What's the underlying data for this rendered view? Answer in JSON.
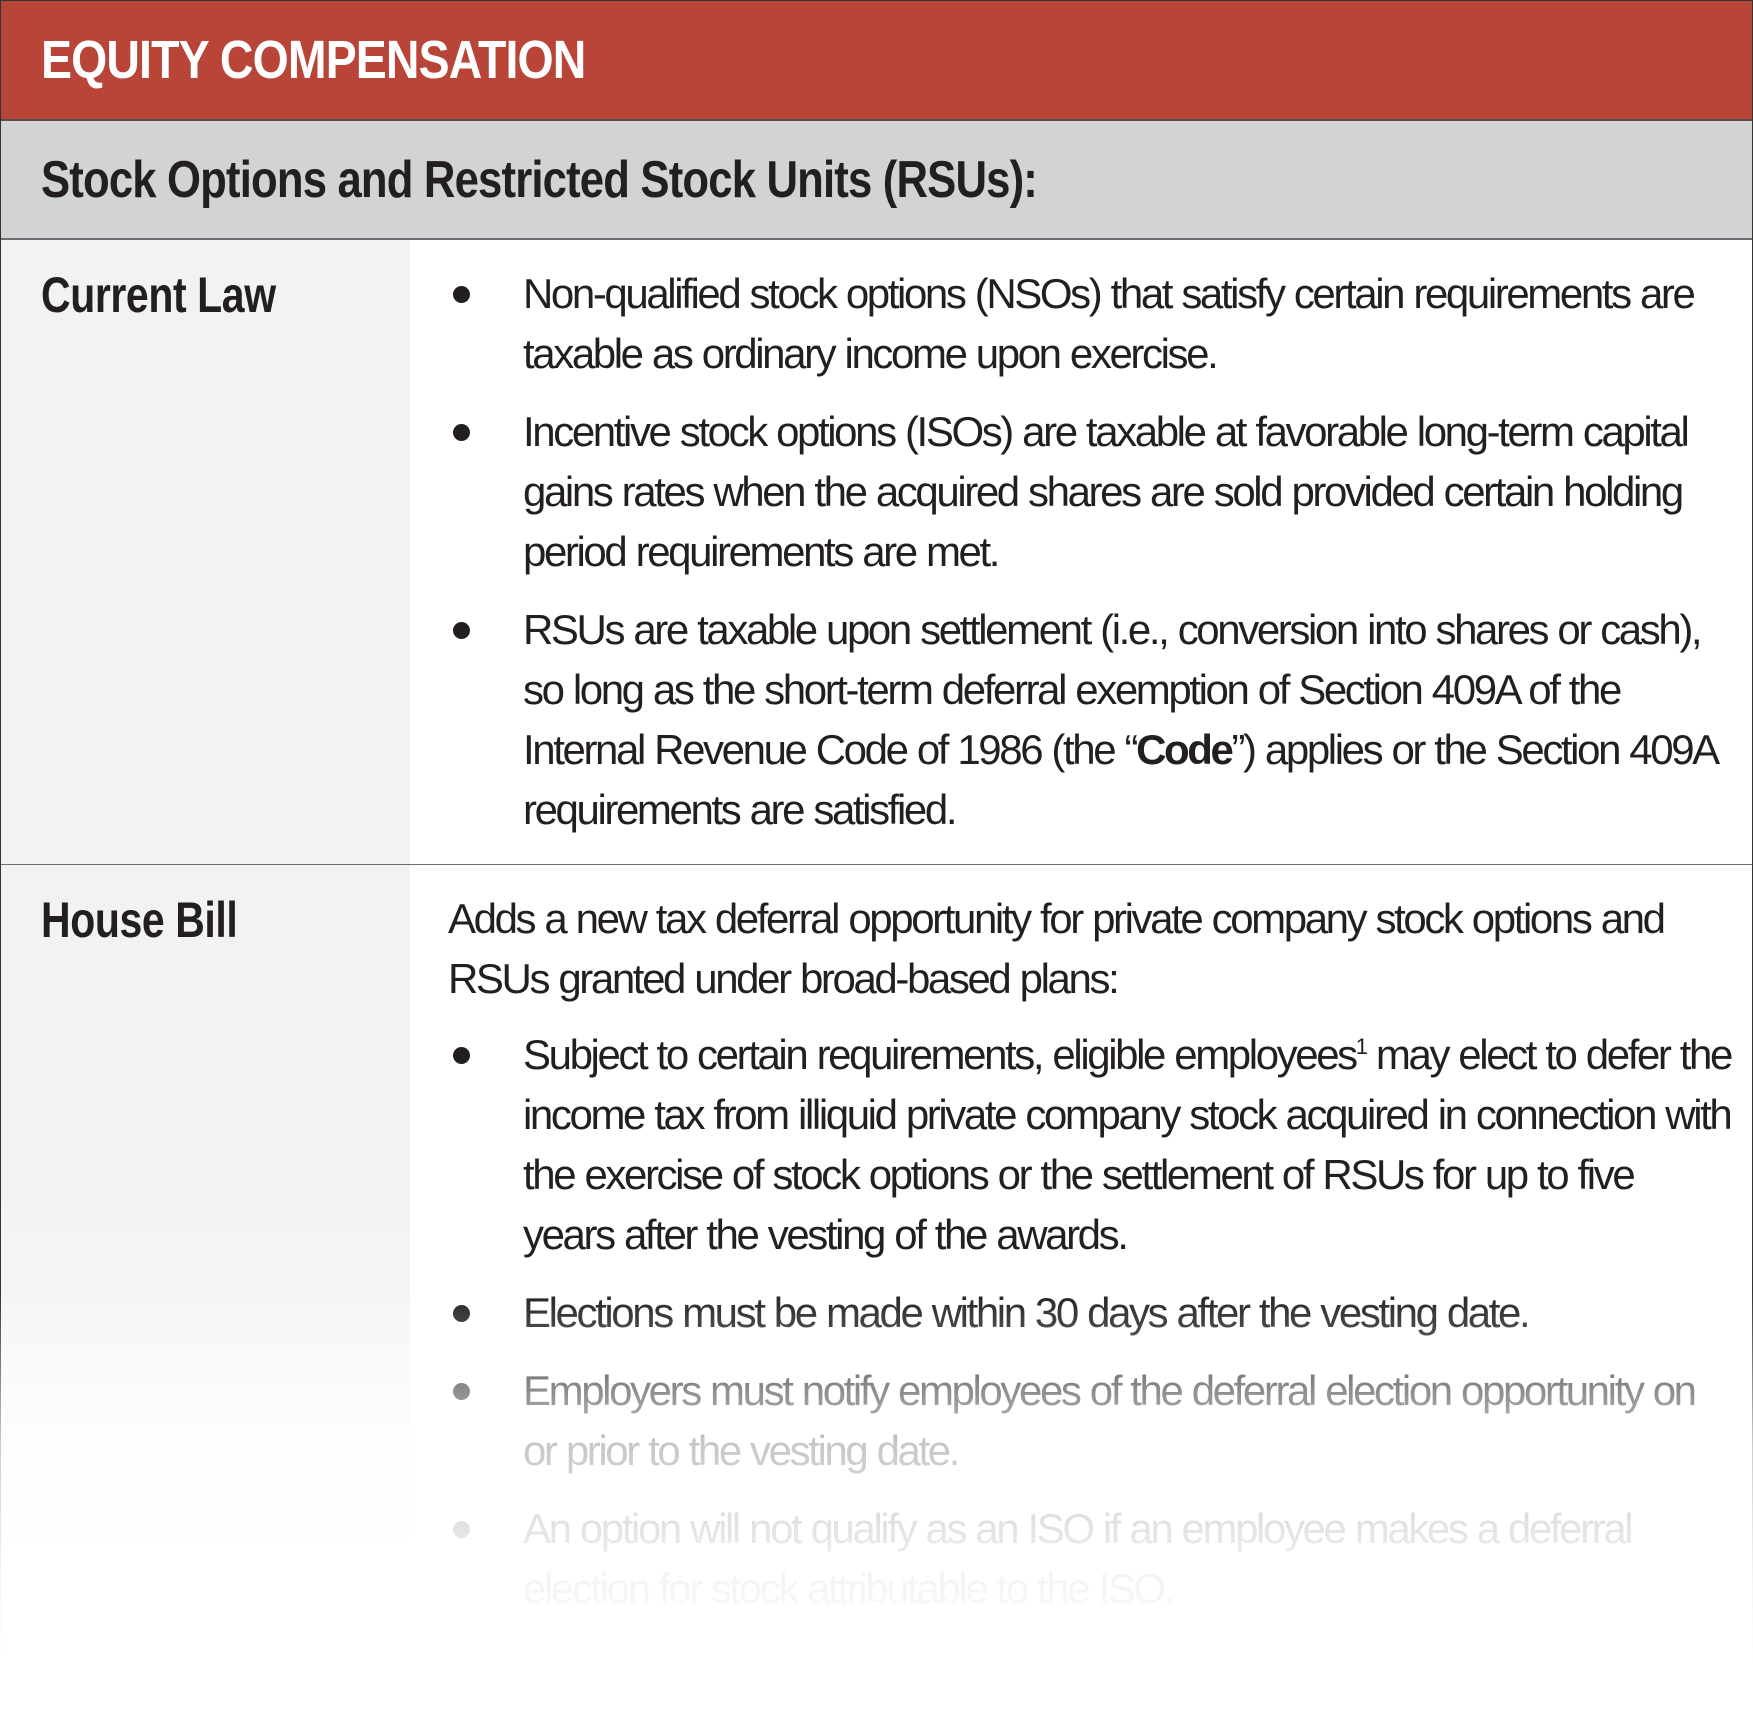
{
  "header": {
    "title": "EQUITY COMPENSATION",
    "accent": "#b84537"
  },
  "subheader": {
    "title": "Stock Options and Restricted Stock Units (RSUs):"
  },
  "current_law": {
    "label": "Current Law",
    "bullets": [
      "Non-qualified stock options (NSOs) that satisfy certain requirements are taxable as ordinary income upon exercise.",
      "Incentive stock options (ISOs) are taxable at favorable long-term capital gains rates when the acquired shares are sold provided certain holding period requirements are met."
    ],
    "bullet3": {
      "pre": "RSUs are taxable upon settlement (i.e., conversion into shares or cash), so long as the short-term deferral exemption of Section 409A of the Internal Revenue Code of 1986 (the “",
      "bold": "Code",
      "post": "”) applies or the Section 409A requirements are satisfied."
    }
  },
  "house_bill": {
    "label": "House Bill",
    "intro": "Adds a new tax deferral opportunity for private company stock options and RSUs granted under broad-based plans:",
    "bullet1": {
      "pre": "Subject to certain requirements, eligible employees",
      "sup": "1",
      "post": " may elect to defer the income tax from illiquid private company stock acquired in connection with the exercise of stock options or the settlement of RSUs for up to five years after the vesting of the awards."
    },
    "bullets": [
      "Elections must be made within 30 days after the vesting date.",
      "Employers must notify employees of the deferral election opportunity on or prior to the vesting date.",
      "An option will not qualify as an ISO if an employee makes a deferral election for stock attributable to the ISO."
    ]
  }
}
